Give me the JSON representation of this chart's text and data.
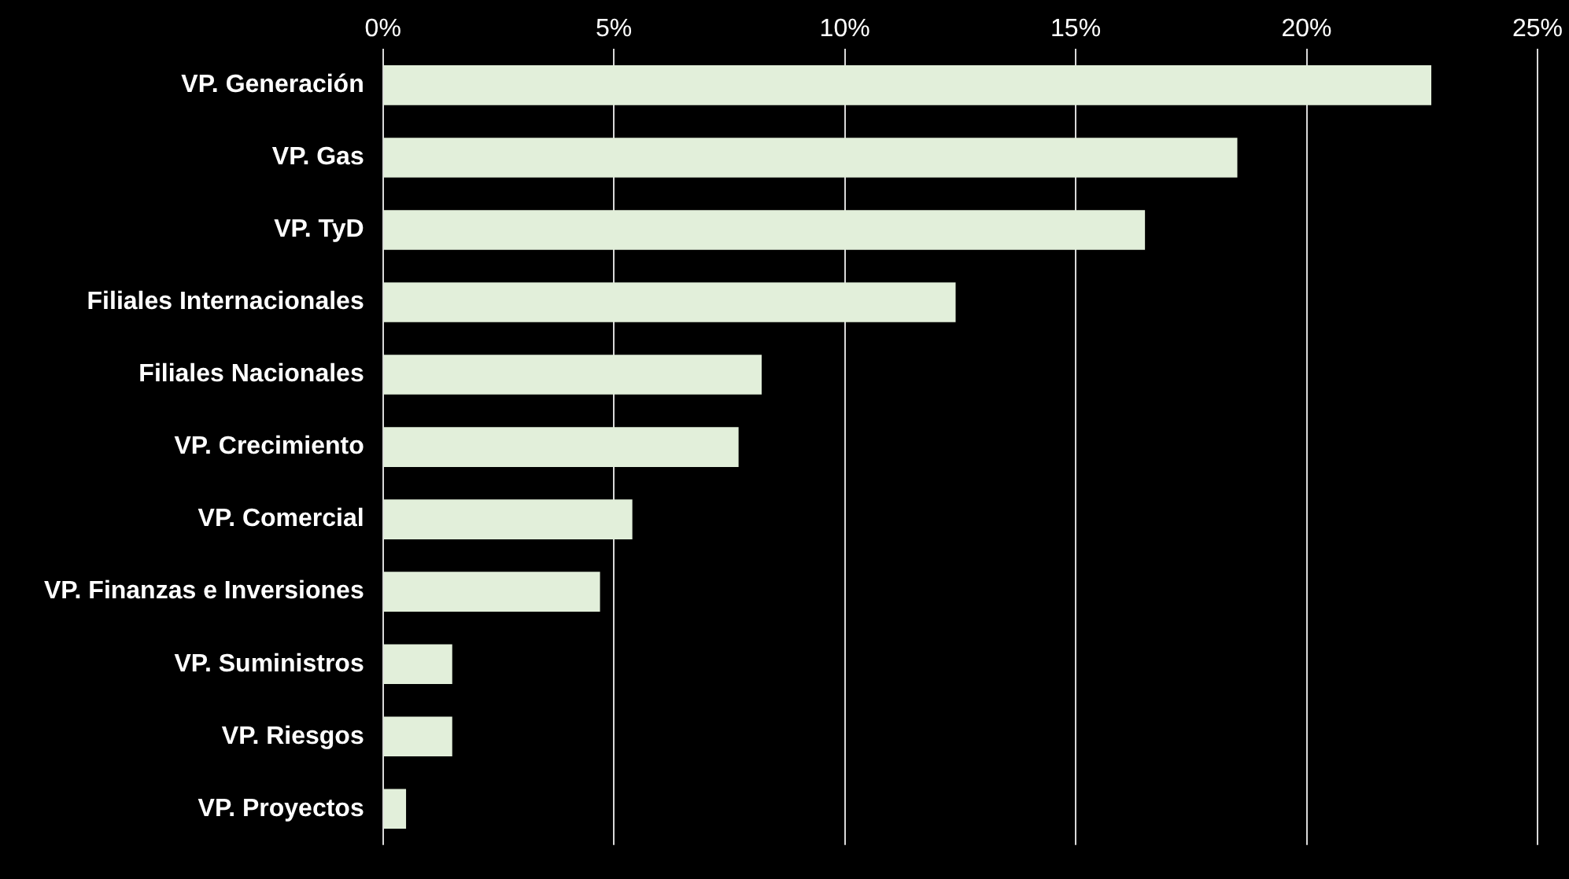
{
  "chart_data": {
    "type": "bar",
    "orientation": "horizontal",
    "categories": [
      "VP. Generación",
      "VP. Gas",
      "VP. TyD",
      "Filiales Internacionales",
      "Filiales Nacionales",
      "VP. Crecimiento",
      "VP. Comercial",
      "VP. Finanzas e Inversiones",
      "VP. Suministros",
      "VP. Riesgos",
      "VP. Proyectos"
    ],
    "values": [
      22.7,
      18.5,
      16.5,
      12.4,
      8.2,
      7.7,
      5.4,
      4.7,
      1.5,
      1.5,
      0.5
    ],
    "color": "#e2efda",
    "xlim": [
      0,
      25
    ],
    "xticks": [
      {
        "value": 0,
        "label": "0%"
      },
      {
        "value": 5,
        "label": "5%"
      },
      {
        "value": 10,
        "label": "10%"
      },
      {
        "value": 15,
        "label": "15%"
      },
      {
        "value": 20,
        "label": "20%"
      },
      {
        "value": 25,
        "label": "25%"
      }
    ],
    "grid": "x",
    "legend": false
  }
}
